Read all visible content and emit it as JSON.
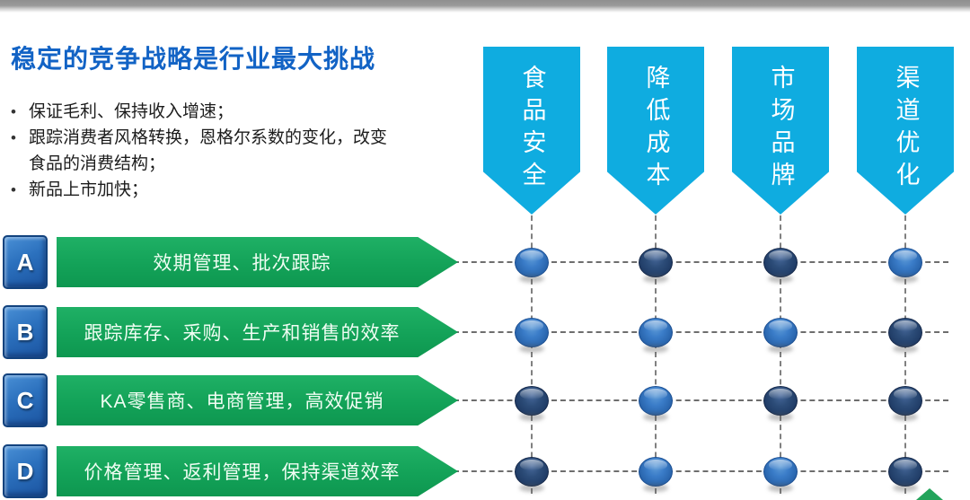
{
  "slide": {
    "title": "稳定的竞争战略是行业最大挑战",
    "bullets": [
      {
        "lines": [
          "保证毛利、保持收入增速；"
        ]
      },
      {
        "lines": [
          "跟踪消费者风格转换，恩格尔系数的变化，改变",
          "食品的消费结构；"
        ]
      },
      {
        "lines": [
          "新品上市加快；"
        ]
      }
    ],
    "columns": [
      {
        "label": "食品安全"
      },
      {
        "label": "降低成本"
      },
      {
        "label": "市场品牌"
      },
      {
        "label": "渠道优化"
      }
    ],
    "rows": [
      {
        "label": "A",
        "text": "效期管理、批次跟踪",
        "dots": [
          "light",
          "dark",
          "dark",
          "light"
        ]
      },
      {
        "label": "B",
        "text": "跟踪库存、采购、生产和销售的效率",
        "dots": [
          "light",
          "light",
          "light",
          "dark"
        ]
      },
      {
        "label": "C",
        "text": "KA零售商、电商管理，高效促销",
        "dots": [
          "dark",
          "light",
          "dark",
          "dark"
        ]
      },
      {
        "label": "D",
        "text": "价格管理、返利管理，保持渠道效率",
        "dots": [
          "dark",
          "light",
          "light",
          "dark"
        ]
      }
    ],
    "colors": {
      "title_blue": "#1263c5",
      "banner_cyan": "#0face0",
      "arrow_green": "#13a258",
      "badge_blue": "#2b70bd",
      "dot_light": "#2a66ae",
      "dot_dark": "#203c66",
      "dash_gray": "#6e6e6e"
    }
  }
}
